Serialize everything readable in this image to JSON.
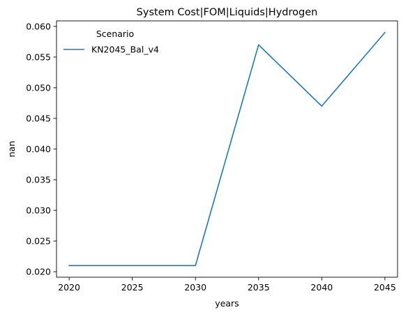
{
  "chart_data": {
    "type": "line",
    "title": "System Cost|FOM|Liquids|Hydrogen",
    "xlabel": "years",
    "ylabel": "nan",
    "x": [
      2020,
      2025,
      2030,
      2035,
      2040,
      2045
    ],
    "series": [
      {
        "name": "KN2045_Bal_v4",
        "values": [
          0.021,
          0.021,
          0.021,
          0.057,
          0.047,
          0.059
        ],
        "color": "#1f77b4"
      }
    ],
    "xlim": [
      2019,
      2046
    ],
    "ylim": [
      0.0191,
      0.0609
    ],
    "xticks": [
      2020,
      2025,
      2030,
      2035,
      2040,
      2045
    ],
    "xtick_labels": [
      "2020",
      "2025",
      "2030",
      "2035",
      "2040",
      "2045"
    ],
    "yticks": [
      0.02,
      0.025,
      0.03,
      0.035,
      0.04,
      0.045,
      0.05,
      0.055,
      0.06
    ],
    "ytick_labels": [
      "0.020",
      "0.025",
      "0.030",
      "0.035",
      "0.040",
      "0.045",
      "0.050",
      "0.055",
      "0.060"
    ],
    "grid": false,
    "legend": {
      "title": "Scenario",
      "placement": "upper-left"
    }
  }
}
